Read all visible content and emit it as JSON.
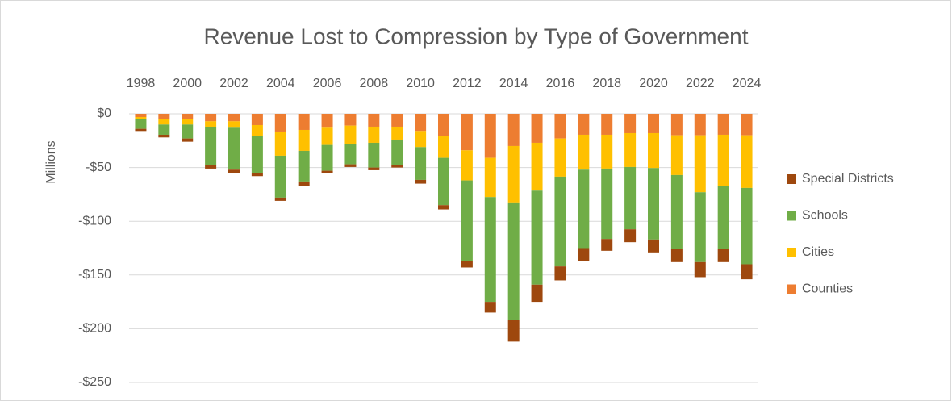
{
  "chart_data": {
    "type": "bar",
    "stacked": true,
    "title": "Revenue Lost to Compression by Type of Government",
    "y_label": "Millions",
    "categories": [
      "1998",
      null,
      "2000",
      null,
      "2002",
      null,
      "2004",
      null,
      "2006",
      null,
      "2008",
      null,
      "2010",
      null,
      "2012",
      null,
      "2014",
      null,
      "2016",
      null,
      "2018",
      null,
      "2020",
      null,
      "2022",
      null,
      "2024"
    ],
    "series": [
      {
        "name": "Special Districts",
        "color": "#9e480e",
        "values": [
          -2,
          -2.5,
          -3,
          -3,
          -3,
          -3,
          -3,
          -4,
          -2.5,
          -2.5,
          -2.5,
          -2,
          -3.5,
          -4,
          -6,
          -10,
          -20,
          -16,
          -13,
          -12,
          -11,
          -12,
          -12,
          -12.5,
          -14,
          -12.5,
          -14
        ]
      },
      {
        "name": "Schools",
        "color": "#70ad47",
        "values": [
          -9.5,
          -9.5,
          -13,
          -36,
          -39,
          -34,
          -39,
          -28.5,
          -24,
          -19,
          -23,
          -24,
          -30.5,
          -44,
          -75,
          -97.5,
          -109.5,
          -87.5,
          -83.5,
          -73,
          -65.5,
          -58,
          -66.5,
          -68.5,
          -65,
          -58.5,
          -71
        ]
      },
      {
        "name": "Cities",
        "color": "#ffc000",
        "values": [
          -1.5,
          -5,
          -5,
          -5,
          -6,
          -10.5,
          -22.5,
          -19.5,
          -16,
          -17,
          -15,
          -12,
          -15,
          -20,
          -28,
          -36.5,
          -52.5,
          -44.5,
          -35.5,
          -32.5,
          -31.5,
          -31.5,
          -32.5,
          -37,
          -53,
          -47.5,
          -49
        ]
      },
      {
        "name": "Counties",
        "color": "#ed7d31",
        "values": [
          -3,
          -5,
          -5,
          -7,
          -7,
          -10.5,
          -16.5,
          -15,
          -13,
          -11,
          -12,
          -12,
          -16,
          -21,
          -34,
          -41,
          -30,
          -27,
          -23,
          -19.5,
          -19.5,
          -18,
          -18,
          -20,
          -20,
          -19.5,
          -20
        ]
      }
    ],
    "ylim": [
      -250,
      0
    ],
    "yticks": [
      {
        "value": -250,
        "label": "-$250"
      },
      {
        "value": -200,
        "label": "-$200"
      },
      {
        "value": -150,
        "label": "-$150"
      },
      {
        "value": -100,
        "label": "-$100"
      },
      {
        "value": -50,
        "label": "-$50"
      },
      {
        "value": 0,
        "label": "$0"
      }
    ],
    "grid": true,
    "legend": "right",
    "x_axis_position": "top"
  }
}
